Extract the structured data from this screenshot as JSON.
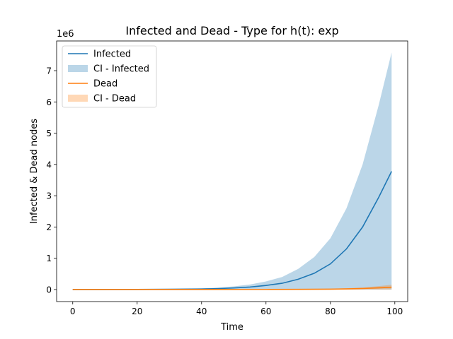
{
  "chart_data": {
    "type": "line",
    "title": "Infected and Dead - Type for h(t): exp",
    "xlabel": "Time",
    "ylabel": "Infected & Dead nodes",
    "y_offset_label": "1e6",
    "y_scale": 1000000,
    "xlim": [
      -5,
      104
    ],
    "ylim": [
      -385000,
      7950000
    ],
    "xticks": [
      0,
      20,
      40,
      60,
      80,
      100
    ],
    "yticks": [
      0,
      1,
      2,
      3,
      4,
      5,
      6,
      7
    ],
    "x_start": 0,
    "x_end": 99,
    "legend_position": "top-left",
    "grid": false,
    "series": [
      {
        "name": "Infected",
        "kind": "line",
        "color": "#1f77b4",
        "x": [
          0,
          10,
          20,
          30,
          40,
          45,
          50,
          55,
          60,
          65,
          70,
          75,
          80,
          85,
          90,
          95,
          99
        ],
        "values": [
          0,
          1000,
          3000,
          8000,
          18000,
          30000,
          50000,
          80000,
          130000,
          200000,
          330000,
          520000,
          820000,
          1300000,
          2000000,
          2950000,
          3780000
        ]
      },
      {
        "name": "CI - Infected",
        "kind": "band",
        "color": "#1f77b4",
        "alpha": 0.3,
        "x": [
          0,
          10,
          20,
          30,
          40,
          45,
          50,
          55,
          60,
          65,
          70,
          75,
          80,
          85,
          90,
          95,
          99
        ],
        "lower": [
          0,
          0,
          0,
          0,
          0,
          0,
          0,
          0,
          0,
          0,
          0,
          0,
          0,
          0,
          0,
          0,
          0
        ],
        "upper": [
          0,
          2000,
          6000,
          16000,
          36000,
          60000,
          100000,
          160000,
          260000,
          400000,
          660000,
          1040000,
          1640000,
          2600000,
          4000000,
          5900000,
          7580000
        ]
      },
      {
        "name": "Dead",
        "kind": "line",
        "color": "#ff7f0e",
        "x": [
          0,
          20,
          40,
          60,
          70,
          80,
          85,
          90,
          95,
          99
        ],
        "values": [
          0,
          100,
          500,
          2000,
          5000,
          12000,
          20000,
          33000,
          55000,
          75000
        ]
      },
      {
        "name": "CI - Dead",
        "kind": "band",
        "color": "#ff7f0e",
        "alpha": 0.3,
        "x": [
          0,
          20,
          40,
          60,
          70,
          80,
          85,
          90,
          95,
          99
        ],
        "lower": [
          0,
          0,
          0,
          0,
          0,
          0,
          0,
          0,
          0,
          0
        ],
        "upper": [
          0,
          200,
          1000,
          4000,
          10000,
          24000,
          40000,
          66000,
          110000,
          150000
        ]
      }
    ]
  }
}
